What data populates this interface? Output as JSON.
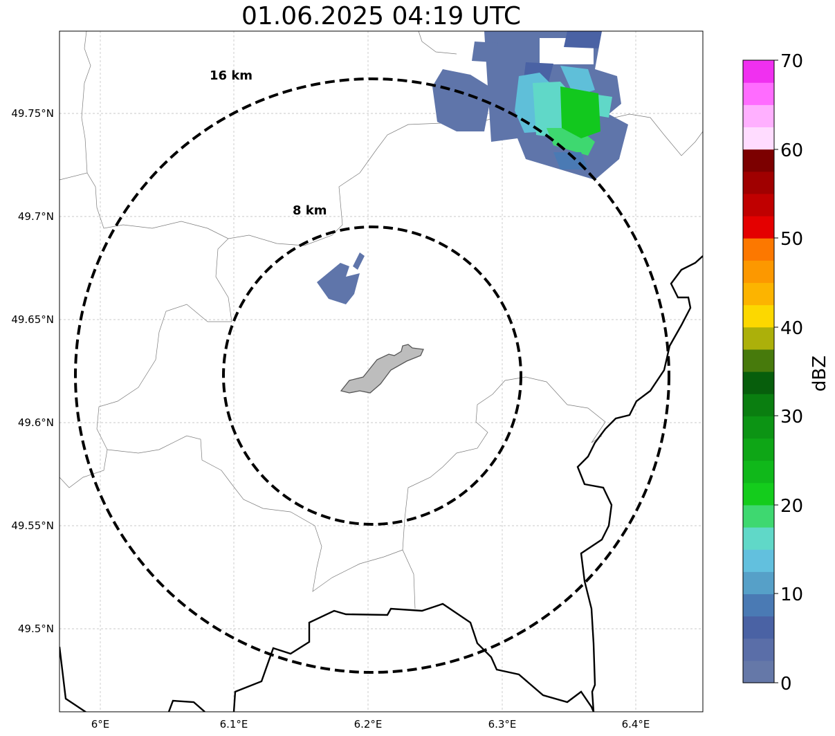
{
  "title": "01.06.2025 04:19 UTC",
  "x_ticks": [
    "6°E",
    "6.1°E",
    "6.2°E",
    "6.3°E",
    "6.4°E"
  ],
  "y_ticks": [
    "49.75°N",
    "49.7°N",
    "49.65°N",
    "49.6°N",
    "49.55°N",
    "49.5°N"
  ],
  "range_rings": [
    {
      "label": "16 km"
    },
    {
      "label": "8 km"
    }
  ],
  "colorbar": {
    "label": "dBZ",
    "ticks": [
      "70",
      "60",
      "50",
      "40",
      "30",
      "20",
      "10",
      "0"
    ],
    "colors": [
      "#6578a8",
      "#5a6ea8",
      "#4a62a4",
      "#4a7ab4",
      "#56a0c8",
      "#62c0de",
      "#60d8c8",
      "#3ed870",
      "#14cc1c",
      "#10b81a",
      "#0ea616",
      "#0c9414",
      "#0a7e10",
      "#075e0c",
      "#477a0c",
      "#acb00a",
      "#fcd800",
      "#fcb400",
      "#fc9800",
      "#fc7800",
      "#e40000",
      "#c00000",
      "#a00000",
      "#7c0000",
      "#ffdcff",
      "#ffb0ff",
      "#ff6cff",
      "#f030f0"
    ]
  },
  "colors": {
    "echo_base": "#5f75aa",
    "echo_mid": "#5fbfd9",
    "echo_core": "#12c81e",
    "site": "#bdbdbd"
  }
}
